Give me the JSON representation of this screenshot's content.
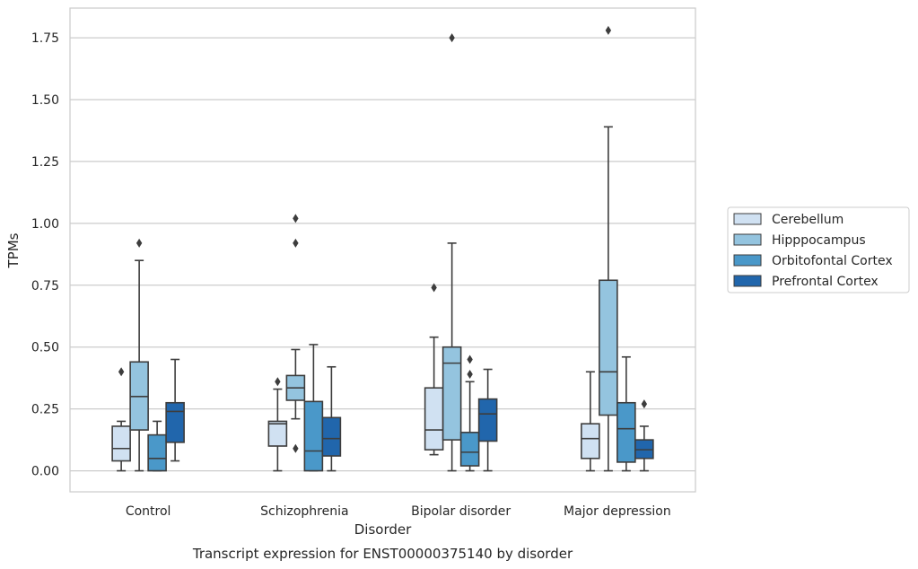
{
  "chart_data": {
    "type": "box",
    "caption": "Transcript expression for ENST00000375140 by disorder",
    "xlabel": "Disorder",
    "ylabel": "TPMs",
    "ylim": [
      -0.085,
      1.87
    ],
    "yticks": [
      0.0,
      0.25,
      0.5,
      0.75,
      1.0,
      1.25,
      1.5,
      1.75
    ],
    "ytick_labels": [
      "0.00",
      "0.25",
      "0.50",
      "0.75",
      "1.00",
      "1.25",
      "1.50",
      "1.75"
    ],
    "grid": "horizontal",
    "legend_position": "right",
    "categories": [
      "Control",
      "Schizophrenia",
      "Bipolar disorder",
      "Major depression"
    ],
    "series": [
      {
        "name": "Cerebellum",
        "color": "#d0e1f2",
        "boxes": [
          {
            "q1": 0.04,
            "median": 0.09,
            "q3": 0.18,
            "whisker_low": 0.0,
            "whisker_high": 0.2,
            "outliers": [
              0.4
            ]
          },
          {
            "q1": 0.1,
            "median": 0.19,
            "q3": 0.2,
            "whisker_low": 0.0,
            "whisker_high": 0.33,
            "outliers": [
              0.36
            ]
          },
          {
            "q1": 0.085,
            "median": 0.165,
            "q3": 0.335,
            "whisker_low": 0.065,
            "whisker_high": 0.54,
            "outliers": [
              0.74
            ]
          },
          {
            "q1": 0.05,
            "median": 0.13,
            "q3": 0.19,
            "whisker_low": 0.0,
            "whisker_high": 0.4,
            "outliers": []
          }
        ]
      },
      {
        "name": "Hipppocampus",
        "color": "#94c4df",
        "boxes": [
          {
            "q1": 0.165,
            "median": 0.3,
            "q3": 0.44,
            "whisker_low": 0.0,
            "whisker_high": 0.85,
            "outliers": [
              0.92
            ]
          },
          {
            "q1": 0.285,
            "median": 0.335,
            "q3": 0.385,
            "whisker_low": 0.21,
            "whisker_high": 0.49,
            "outliers": [
              0.09,
              0.92,
              1.02
            ]
          },
          {
            "q1": 0.125,
            "median": 0.435,
            "q3": 0.5,
            "whisker_low": 0.0,
            "whisker_high": 0.92,
            "outliers": [
              1.75
            ]
          },
          {
            "q1": 0.225,
            "median": 0.4,
            "q3": 0.77,
            "whisker_low": 0.0,
            "whisker_high": 1.39,
            "outliers": [
              1.78
            ]
          }
        ]
      },
      {
        "name": "Orbitofontal Cortex",
        "color": "#4a98c9",
        "boxes": [
          {
            "q1": 0.0,
            "median": 0.05,
            "q3": 0.145,
            "whisker_low": 0.0,
            "whisker_high": 0.2,
            "outliers": []
          },
          {
            "q1": 0.0,
            "median": 0.08,
            "q3": 0.28,
            "whisker_low": 0.0,
            "whisker_high": 0.51,
            "outliers": []
          },
          {
            "q1": 0.02,
            "median": 0.075,
            "q3": 0.155,
            "whisker_low": 0.0,
            "whisker_high": 0.36,
            "outliers": [
              0.39,
              0.45
            ]
          },
          {
            "q1": 0.035,
            "median": 0.17,
            "q3": 0.275,
            "whisker_low": 0.0,
            "whisker_high": 0.46,
            "outliers": []
          }
        ]
      },
      {
        "name": "Prefrontal Cortex",
        "color": "#2166ac",
        "boxes": [
          {
            "q1": 0.115,
            "median": 0.24,
            "q3": 0.275,
            "whisker_low": 0.04,
            "whisker_high": 0.45,
            "outliers": []
          },
          {
            "q1": 0.06,
            "median": 0.13,
            "q3": 0.215,
            "whisker_low": 0.0,
            "whisker_high": 0.42,
            "outliers": []
          },
          {
            "q1": 0.12,
            "median": 0.23,
            "q3": 0.29,
            "whisker_low": 0.0,
            "whisker_high": 0.41,
            "outliers": []
          },
          {
            "q1": 0.05,
            "median": 0.085,
            "q3": 0.125,
            "whisker_low": 0.0,
            "whisker_high": 0.18,
            "outliers": [
              0.27
            ]
          }
        ]
      }
    ],
    "colors": {
      "grid": "#cccccc",
      "frame": "#cccccc",
      "line": "#3d3d3d",
      "legend_border": "#cccccc"
    }
  }
}
